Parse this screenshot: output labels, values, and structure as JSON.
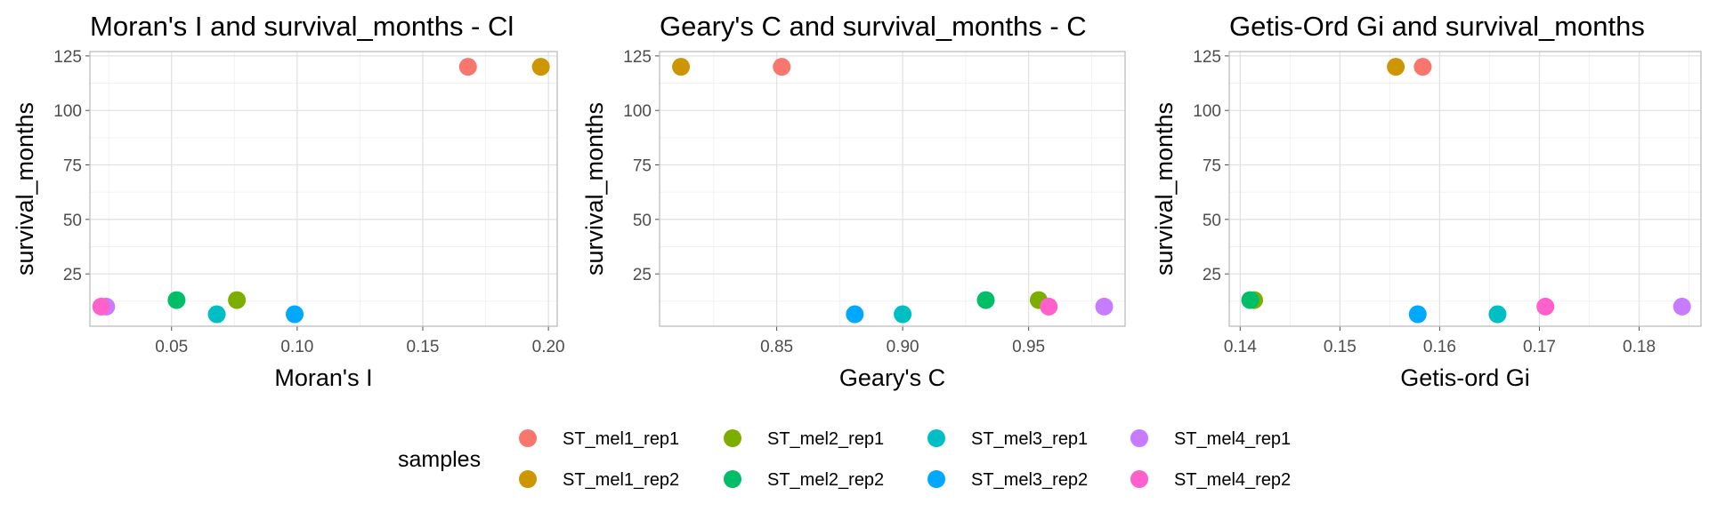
{
  "colors": {
    "ST_mel1_rep1": "#F8766D",
    "ST_mel1_rep2": "#CD9600",
    "ST_mel2_rep1": "#7CAE00",
    "ST_mel2_rep2": "#00BE67",
    "ST_mel3_rep1": "#00BFC4",
    "ST_mel3_rep2": "#00A9FF",
    "ST_mel4_rep1": "#C77CFF",
    "ST_mel4_rep2": "#FF61CC"
  },
  "legend": {
    "title": "samples",
    "entries": [
      "ST_mel1_rep1",
      "ST_mel1_rep2",
      "ST_mel2_rep1",
      "ST_mel2_rep2",
      "ST_mel3_rep1",
      "ST_mel3_rep2",
      "ST_mel4_rep1",
      "ST_mel4_rep2"
    ]
  },
  "chart_data": [
    {
      "type": "scatter",
      "title": "Moran's I and survival_months - Cl",
      "xlabel": "Moran's I",
      "ylabel": "survival_months",
      "xlim": [
        0.0175,
        0.2035
      ],
      "ylim": [
        1,
        127
      ],
      "xticks": [
        0.05,
        0.1,
        0.15,
        0.2
      ],
      "xtick_labels": [
        "0.05",
        "0.10",
        "0.15",
        "0.20"
      ],
      "yticks": [
        25,
        50,
        75,
        100,
        125
      ],
      "ytick_labels": [
        "25",
        "50",
        "75",
        "100",
        "125"
      ],
      "grid": true,
      "points": [
        {
          "series": "ST_mel1_rep1",
          "x": 0.168,
          "y": 120
        },
        {
          "series": "ST_mel1_rep2",
          "x": 0.197,
          "y": 120
        },
        {
          "series": "ST_mel2_rep1",
          "x": 0.076,
          "y": 13
        },
        {
          "series": "ST_mel2_rep2",
          "x": 0.052,
          "y": 13
        },
        {
          "series": "ST_mel3_rep1",
          "x": 0.068,
          "y": 6.5
        },
        {
          "series": "ST_mel3_rep2",
          "x": 0.099,
          "y": 6.5
        },
        {
          "series": "ST_mel4_rep1",
          "x": 0.024,
          "y": 10
        },
        {
          "series": "ST_mel4_rep2",
          "x": 0.022,
          "y": 10
        }
      ]
    },
    {
      "type": "scatter",
      "title": "Geary's C and survival_months - C",
      "xlabel": "Geary's C",
      "ylabel": "survival_months",
      "xlim": [
        0.8035,
        0.9883
      ],
      "ylim": [
        1,
        127
      ],
      "xticks": [
        0.85,
        0.9,
        0.95
      ],
      "xtick_labels": [
        "0.85",
        "0.90",
        "0.95"
      ],
      "yticks": [
        25,
        50,
        75,
        100,
        125
      ],
      "ytick_labels": [
        "25",
        "50",
        "75",
        "100",
        "125"
      ],
      "grid": true,
      "points": [
        {
          "series": "ST_mel1_rep1",
          "x": 0.852,
          "y": 120
        },
        {
          "series": "ST_mel1_rep2",
          "x": 0.812,
          "y": 120
        },
        {
          "series": "ST_mel2_rep1",
          "x": 0.954,
          "y": 13
        },
        {
          "series": "ST_mel2_rep2",
          "x": 0.933,
          "y": 13
        },
        {
          "series": "ST_mel3_rep1",
          "x": 0.9,
          "y": 6.5
        },
        {
          "series": "ST_mel3_rep2",
          "x": 0.881,
          "y": 6.5
        },
        {
          "series": "ST_mel4_rep1",
          "x": 0.98,
          "y": 10
        },
        {
          "series": "ST_mel4_rep2",
          "x": 0.958,
          "y": 10
        }
      ]
    },
    {
      "type": "scatter",
      "title": "Getis-Ord Gi and survival_months",
      "xlabel": "Getis-ord Gi",
      "ylabel": "survival_months",
      "xlim": [
        0.1389,
        0.1862
      ],
      "ylim": [
        1,
        127
      ],
      "xticks": [
        0.14,
        0.15,
        0.16,
        0.17,
        0.18
      ],
      "xtick_labels": [
        "0.14",
        "0.15",
        "0.16",
        "0.17",
        "0.18"
      ],
      "yticks": [
        25,
        50,
        75,
        100,
        125
      ],
      "ytick_labels": [
        "25",
        "50",
        "75",
        "100",
        "125"
      ],
      "grid": true,
      "points": [
        {
          "series": "ST_mel1_rep1",
          "x": 0.1583,
          "y": 120
        },
        {
          "series": "ST_mel1_rep2",
          "x": 0.1556,
          "y": 120
        },
        {
          "series": "ST_mel2_rep1",
          "x": 0.1414,
          "y": 13
        },
        {
          "series": "ST_mel2_rep2",
          "x": 0.141,
          "y": 13
        },
        {
          "series": "ST_mel3_rep1",
          "x": 0.1658,
          "y": 6.5
        },
        {
          "series": "ST_mel3_rep2",
          "x": 0.1578,
          "y": 6.5
        },
        {
          "series": "ST_mel4_rep1",
          "x": 0.1843,
          "y": 10
        },
        {
          "series": "ST_mel4_rep2",
          "x": 0.1706,
          "y": 10
        }
      ]
    }
  ]
}
